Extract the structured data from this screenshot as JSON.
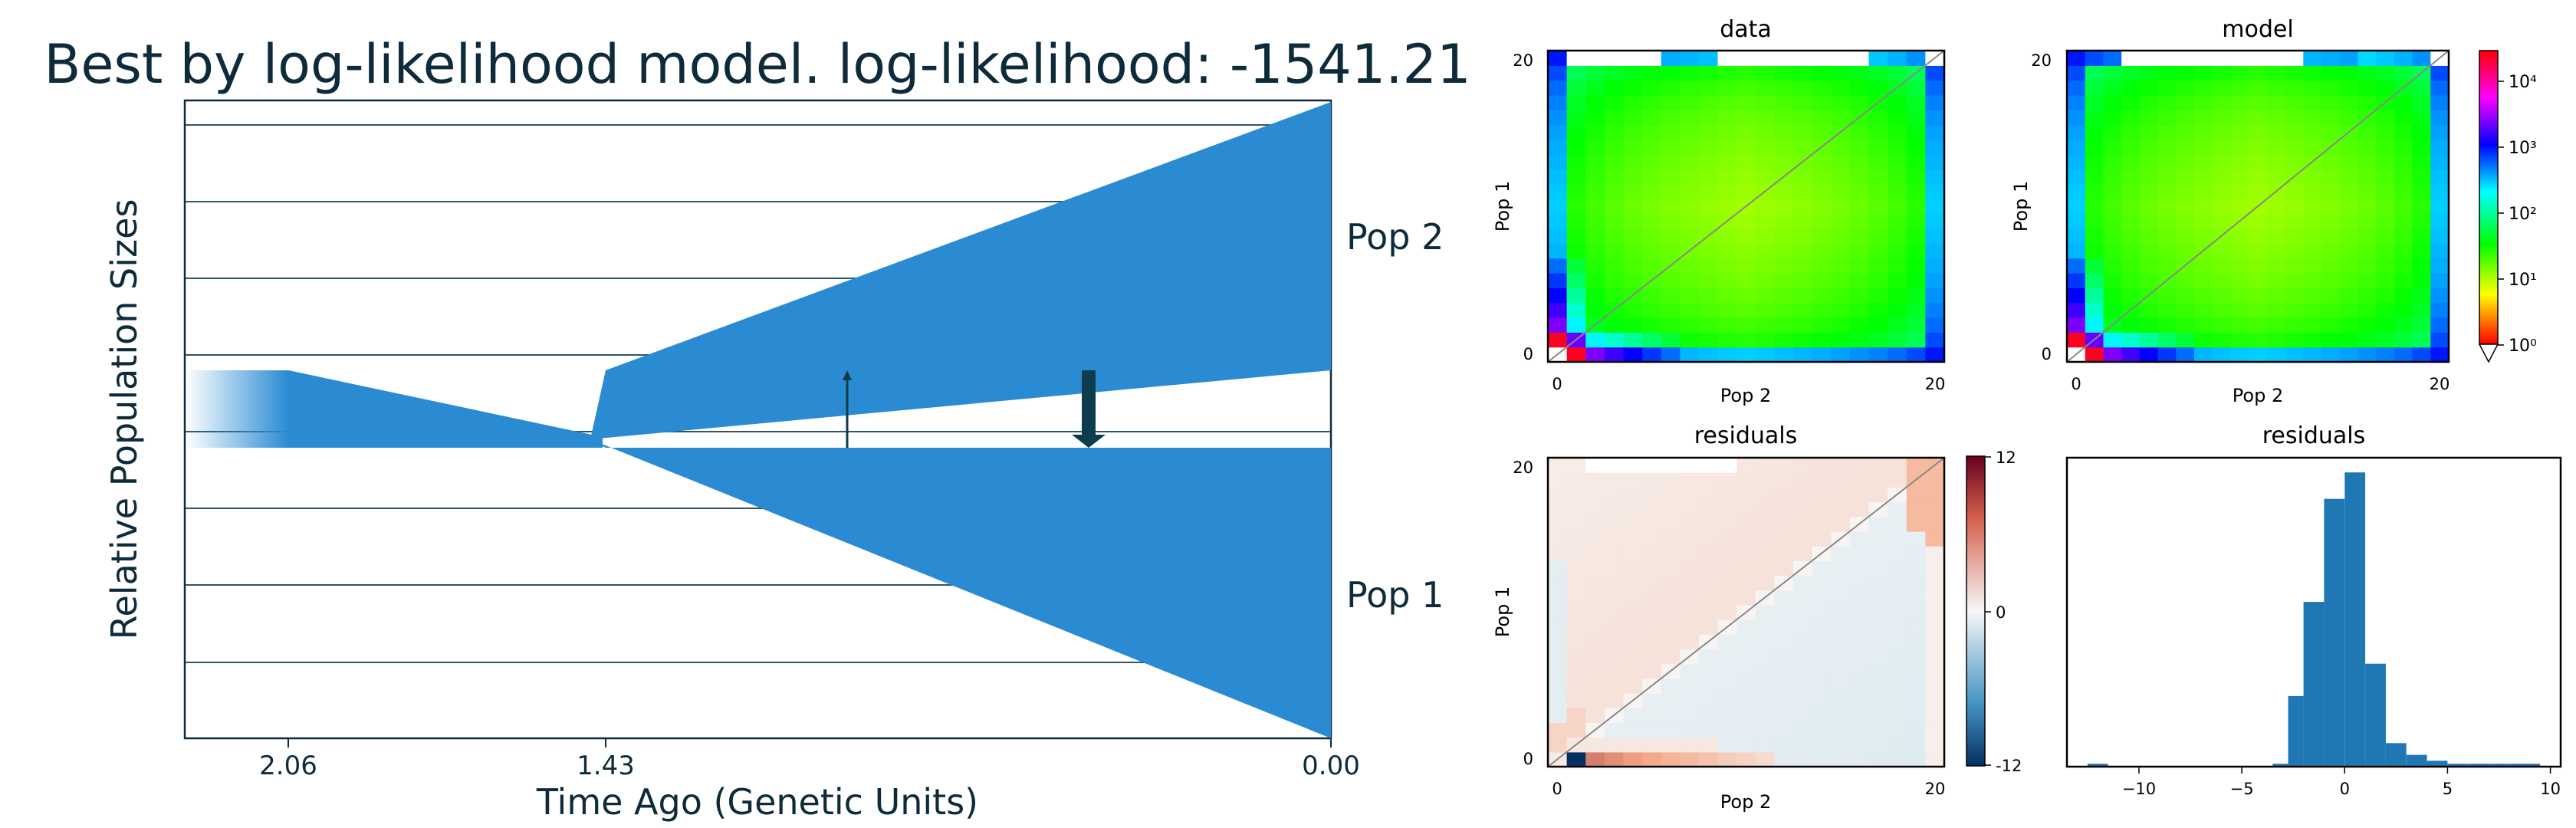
{
  "colors": {
    "population": "#2a8bd3",
    "text_dark": "#0d2b3a",
    "migration_arrow": "#0e3b4e",
    "hist_bar": "#1f77b4",
    "frame": "#000000"
  },
  "demography": {
    "title": "Best by log-likelihood model. log-likelihood: -1541.21",
    "ylabel": "Relative Population Sizes",
    "xlabel": "Time Ago (Genetic Units)",
    "pop_labels": [
      "Pop 2",
      "Pop 1"
    ],
    "time_ticks": [
      "2.06",
      "1.43",
      "0.00"
    ]
  },
  "chart_data": [
    {
      "type": "area",
      "title": "Best by log-likelihood model. log-likelihood: -1541.21",
      "xlabel": "Time Ago (Genetic Units)",
      "ylabel": "Relative Population Sizes",
      "x_ticks": [
        2.06,
        1.43,
        0.0
      ],
      "grid": true,
      "series": [
        {
          "name": "Pop 2",
          "times": [
            1.43,
            0.0
          ],
          "relative_size_start": 1.0,
          "relative_size_end": 4.3
        },
        {
          "name": "Pop 1",
          "times": [
            1.43,
            0.0
          ],
          "relative_size_start": 1.0,
          "relative_size_end": 3.8
        }
      ],
      "ancestral": {
        "times": [
          2.06,
          1.43
        ],
        "relative_size_start": 1.0,
        "relative_size_end": 0.05
      },
      "migration": [
        {
          "time": 1.04,
          "direction": "Pop 1 → Pop 2",
          "strength": "weak"
        },
        {
          "time": 0.37,
          "direction": "Pop 2 → Pop 1",
          "strength": "strong"
        }
      ]
    },
    {
      "type": "heatmap",
      "title": "data",
      "xlabel": "Pop 2",
      "ylabel": "Pop 1",
      "x_ticks": [
        0,
        20
      ],
      "y_ticks": [
        0,
        20
      ],
      "xlim": [
        0,
        20
      ],
      "ylim": [
        0,
        20
      ],
      "color_scale": "log",
      "masked": "top row cells 1-5 and 9-16 (white)"
    },
    {
      "type": "heatmap",
      "title": "model",
      "xlabel": "Pop 2",
      "ylabel": "Pop 1",
      "x_ticks": [
        0,
        20
      ],
      "y_ticks": [
        0,
        20
      ],
      "xlim": [
        0,
        20
      ],
      "ylim": [
        0,
        20
      ],
      "color_scale": "log",
      "colorbar_ticks": [
        "10⁰",
        "10¹",
        "10²",
        "10³",
        "10⁴"
      ],
      "colorbar_range": [
        1,
        30000
      ]
    },
    {
      "type": "heatmap",
      "title": "residuals",
      "xlabel": "Pop 2",
      "ylabel": "Pop 1",
      "x_ticks": [
        0,
        20
      ],
      "y_ticks": [
        0,
        20
      ],
      "xlim": [
        0,
        20
      ],
      "ylim": [
        0,
        20
      ],
      "colorbar_ticks": [
        "12",
        "0",
        "-12"
      ],
      "colorbar_range": [
        -12,
        12
      ]
    },
    {
      "type": "bar",
      "title": "residuals",
      "x_ticks": [
        -10,
        -5,
        0,
        5,
        10
      ],
      "xlim": [
        -13.5,
        10.5
      ],
      "bins": [
        {
          "x0": -12.5,
          "x1": -11.5,
          "count": 1
        },
        {
          "x0": -3.5,
          "x1": -2.75,
          "count": 1
        },
        {
          "x0": -2.75,
          "x1": -2.0,
          "count": 24
        },
        {
          "x0": -2.0,
          "x1": -1.0,
          "count": 56
        },
        {
          "x0": -1.0,
          "x1": 0.0,
          "count": 91
        },
        {
          "x0": 0.0,
          "x1": 1.0,
          "count": 100
        },
        {
          "x0": 1.0,
          "x1": 2.0,
          "count": 35
        },
        {
          "x0": 2.0,
          "x1": 3.0,
          "count": 8
        },
        {
          "x0": 3.0,
          "x1": 4.0,
          "count": 4
        },
        {
          "x0": 4.0,
          "x1": 5.0,
          "count": 2
        },
        {
          "x0": 5.0,
          "x1": 6.0,
          "count": 1
        },
        {
          "x0": 6.0,
          "x1": 7.0,
          "count": 1
        },
        {
          "x0": 7.0,
          "x1": 8.0,
          "count": 1
        },
        {
          "x0": 8.0,
          "x1": 9.5,
          "count": 1
        }
      ]
    }
  ],
  "panels": {
    "data_title": "data",
    "model_title": "model",
    "residuals_title": "residuals",
    "hist_title": "residuals",
    "xlabel": "Pop 2",
    "ylabel": "Pop 1",
    "tick_zero": "0",
    "tick_twenty": "20",
    "log_colorbar_ticks": [
      "10⁴",
      "10³",
      "10²",
      "10¹",
      "10⁰"
    ],
    "res_colorbar_ticks": [
      "12",
      "0",
      "-12"
    ],
    "hist_ticks": [
      "−10",
      "−5",
      "0",
      "5",
      "10"
    ]
  }
}
